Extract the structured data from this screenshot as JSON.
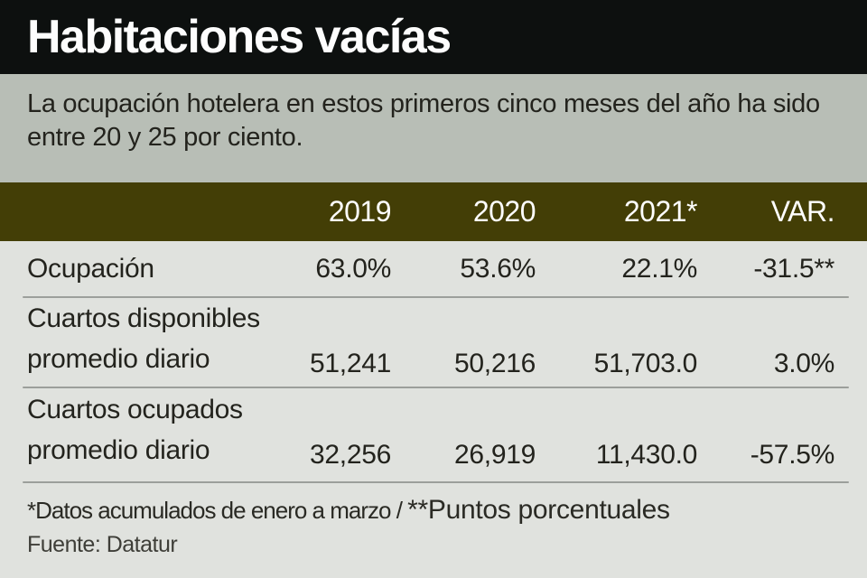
{
  "header": {
    "title": "Habitaciones vacías"
  },
  "subtitle": "La ocupación hotelera en estos primeros cinco meses del año ha sido entre 20 y 25 por ciento.",
  "table": {
    "columns": [
      "2019",
      "2020",
      "2021*",
      "VAR."
    ],
    "rows": [
      {
        "label": "Ocupación",
        "label2": "",
        "values": [
          "63.0%",
          "53.6%",
          "22.1%",
          "-31.5**"
        ]
      },
      {
        "label": "Cuartos disponibles",
        "label2": "promedio diario",
        "values": [
          "51,241",
          "50,216",
          "51,703.0",
          "3.0%"
        ]
      },
      {
        "label": "Cuartos ocupados",
        "label2": "promedio diario",
        "values": [
          "32,256",
          "26,919",
          "11,430.0",
          "-57.5%"
        ]
      }
    ]
  },
  "footer": {
    "note_small": "*Datos acumulados de enero a marzo / ",
    "note_large": "**Puntos porcentuales",
    "source": "Fuente: Datatur"
  },
  "colors": {
    "title_bar_bg": "#0d100f",
    "title_text": "#fdfdfd",
    "subtitle_bg": "#b8beb6",
    "header_bg": "#433e06",
    "header_text": "#ffffff",
    "table_bg": "#e0e2de",
    "body_text": "#23231d",
    "divider": "#9c9f9b"
  },
  "chart_data": {
    "type": "table",
    "title": "Habitaciones vacías",
    "subtitle": "La ocupación hotelera en estos primeros cinco meses del año ha sido entre 20 y 25 por ciento.",
    "columns": [
      "",
      "2019",
      "2020",
      "2021*",
      "VAR."
    ],
    "rows": [
      [
        "Ocupación",
        "63.0%",
        "53.6%",
        "22.1%",
        "-31.5**"
      ],
      [
        "Cuartos disponibles promedio diario",
        "51,241",
        "50,216",
        "51,703.0",
        "3.0%"
      ],
      [
        "Cuartos ocupados promedio diario",
        "32,256",
        "26,919",
        "11,430.0",
        "-57.5%"
      ]
    ],
    "notes": "*Datos acumulados de enero a marzo / **Puntos porcentuales",
    "source": "Fuente: Datatur"
  }
}
